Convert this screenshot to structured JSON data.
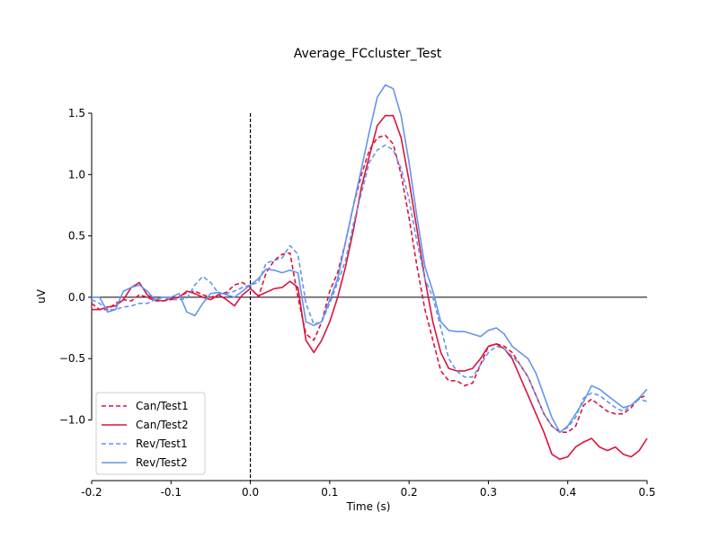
{
  "chart_data": {
    "type": "line",
    "title": "Average_FCcluster_Test",
    "xlabel": "Time (s)",
    "ylabel": "uV",
    "xlim": [
      -0.2,
      0.5
    ],
    "ylim": [
      -1.5,
      1.5
    ],
    "xticks": [
      "-0.2",
      "-0.1",
      "0.0",
      "0.1",
      "0.2",
      "0.3",
      "0.4",
      "0.5"
    ],
    "yticks": [
      "1.5",
      "1.0",
      "0.5",
      "0.0",
      "−0.5",
      "−1.0"
    ],
    "legend_position": "lower-left",
    "zero_line": true,
    "onset_marker": 0.0,
    "x": [
      -0.2,
      -0.19,
      -0.18,
      -0.17,
      -0.16,
      -0.15,
      -0.14,
      -0.13,
      -0.12,
      -0.11,
      -0.1,
      -0.09,
      -0.08,
      -0.07,
      -0.06,
      -0.05,
      -0.04,
      -0.03,
      -0.02,
      -0.01,
      0.0,
      0.01,
      0.02,
      0.03,
      0.04,
      0.05,
      0.06,
      0.07,
      0.08,
      0.09,
      0.1,
      0.11,
      0.12,
      0.13,
      0.14,
      0.15,
      0.16,
      0.17,
      0.18,
      0.19,
      0.2,
      0.21,
      0.22,
      0.23,
      0.24,
      0.25,
      0.26,
      0.27,
      0.28,
      0.29,
      0.3,
      0.31,
      0.32,
      0.33,
      0.34,
      0.35,
      0.36,
      0.37,
      0.38,
      0.39,
      0.4,
      0.41,
      0.42,
      0.43,
      0.44,
      0.45,
      0.46,
      0.47,
      0.48,
      0.49,
      0.5
    ],
    "series": [
      {
        "name": "Can/Test1",
        "color": "#dc143c",
        "dash": true,
        "values": [
          -0.05,
          -0.1,
          -0.1,
          -0.05,
          -0.02,
          -0.03,
          0.02,
          0.0,
          -0.03,
          -0.03,
          -0.02,
          0.0,
          0.04,
          0.05,
          0.02,
          0.0,
          0.02,
          0.04,
          0.1,
          0.12,
          0.08,
          0.0,
          0.2,
          0.3,
          0.35,
          0.36,
          0.0,
          -0.3,
          -0.35,
          -0.2,
          0.05,
          0.2,
          0.45,
          0.75,
          1.0,
          1.2,
          1.3,
          1.32,
          1.25,
          1.0,
          0.65,
          0.25,
          -0.1,
          -0.35,
          -0.6,
          -0.68,
          -0.68,
          -0.72,
          -0.7,
          -0.55,
          -0.4,
          -0.38,
          -0.4,
          -0.45,
          -0.55,
          -0.65,
          -0.8,
          -0.95,
          -1.05,
          -1.1,
          -1.1,
          -1.05,
          -0.88,
          -0.83,
          -0.88,
          -0.93,
          -0.95,
          -0.95,
          -0.9,
          -0.82,
          -0.8
        ]
      },
      {
        "name": "Can/Test2",
        "color": "#dc143c",
        "dash": false,
        "values": [
          -0.1,
          -0.1,
          -0.08,
          -0.07,
          -0.02,
          0.08,
          0.12,
          0.02,
          -0.02,
          -0.03,
          -0.01,
          0.0,
          0.05,
          0.03,
          0.0,
          -0.02,
          0.02,
          -0.02,
          -0.07,
          0.02,
          0.07,
          0.01,
          0.04,
          0.07,
          0.08,
          0.13,
          0.08,
          -0.35,
          -0.45,
          -0.35,
          -0.2,
          0.0,
          0.25,
          0.55,
          0.9,
          1.15,
          1.4,
          1.48,
          1.48,
          1.3,
          0.95,
          0.55,
          0.15,
          -0.2,
          -0.45,
          -0.58,
          -0.6,
          -0.6,
          -0.58,
          -0.5,
          -0.4,
          -0.38,
          -0.42,
          -0.5,
          -0.65,
          -0.8,
          -0.95,
          -1.1,
          -1.28,
          -1.32,
          -1.3,
          -1.22,
          -1.18,
          -1.15,
          -1.22,
          -1.25,
          -1.22,
          -1.28,
          -1.3,
          -1.25,
          -1.15
        ]
      },
      {
        "name": "Rev/Test1",
        "color": "#6495ed",
        "dash": true,
        "values": [
          -0.02,
          -0.05,
          -0.1,
          -0.1,
          -0.08,
          -0.07,
          -0.05,
          -0.05,
          -0.02,
          0.0,
          -0.02,
          -0.02,
          -0.01,
          0.1,
          0.17,
          0.12,
          0.03,
          0.03,
          0.05,
          0.08,
          0.1,
          0.12,
          0.28,
          0.3,
          0.32,
          0.42,
          0.35,
          -0.05,
          -0.22,
          -0.2,
          -0.05,
          0.12,
          0.3,
          0.6,
          0.85,
          1.1,
          1.2,
          1.24,
          1.2,
          1.05,
          0.8,
          0.45,
          0.15,
          0.0,
          -0.25,
          -0.5,
          -0.6,
          -0.65,
          -0.65,
          -0.55,
          -0.45,
          -0.4,
          -0.42,
          -0.48,
          -0.55,
          -0.65,
          -0.8,
          -0.95,
          -1.05,
          -1.1,
          -1.06,
          -0.98,
          -0.82,
          -0.78,
          -0.8,
          -0.85,
          -0.9,
          -0.93,
          -0.88,
          -0.83,
          -0.85
        ]
      },
      {
        "name": "Rev/Test2",
        "color": "#6495ed",
        "dash": false,
        "values": [
          0.0,
          0.0,
          -0.12,
          -0.1,
          0.05,
          0.08,
          0.1,
          0.05,
          -0.02,
          0.0,
          0.0,
          0.03,
          -0.12,
          -0.15,
          -0.05,
          0.03,
          0.04,
          0.02,
          0.0,
          0.05,
          0.1,
          0.15,
          0.23,
          0.22,
          0.2,
          0.22,
          0.2,
          -0.2,
          -0.23,
          -0.2,
          -0.02,
          0.15,
          0.45,
          0.75,
          1.05,
          1.35,
          1.63,
          1.73,
          1.7,
          1.48,
          1.1,
          0.65,
          0.25,
          0.05,
          -0.2,
          -0.27,
          -0.28,
          -0.28,
          -0.3,
          -0.32,
          -0.27,
          -0.25,
          -0.3,
          -0.4,
          -0.45,
          -0.5,
          -0.62,
          -0.8,
          -0.98,
          -1.1,
          -1.05,
          -0.95,
          -0.85,
          -0.72,
          -0.75,
          -0.8,
          -0.85,
          -0.9,
          -0.88,
          -0.82,
          -0.75
        ]
      }
    ]
  }
}
